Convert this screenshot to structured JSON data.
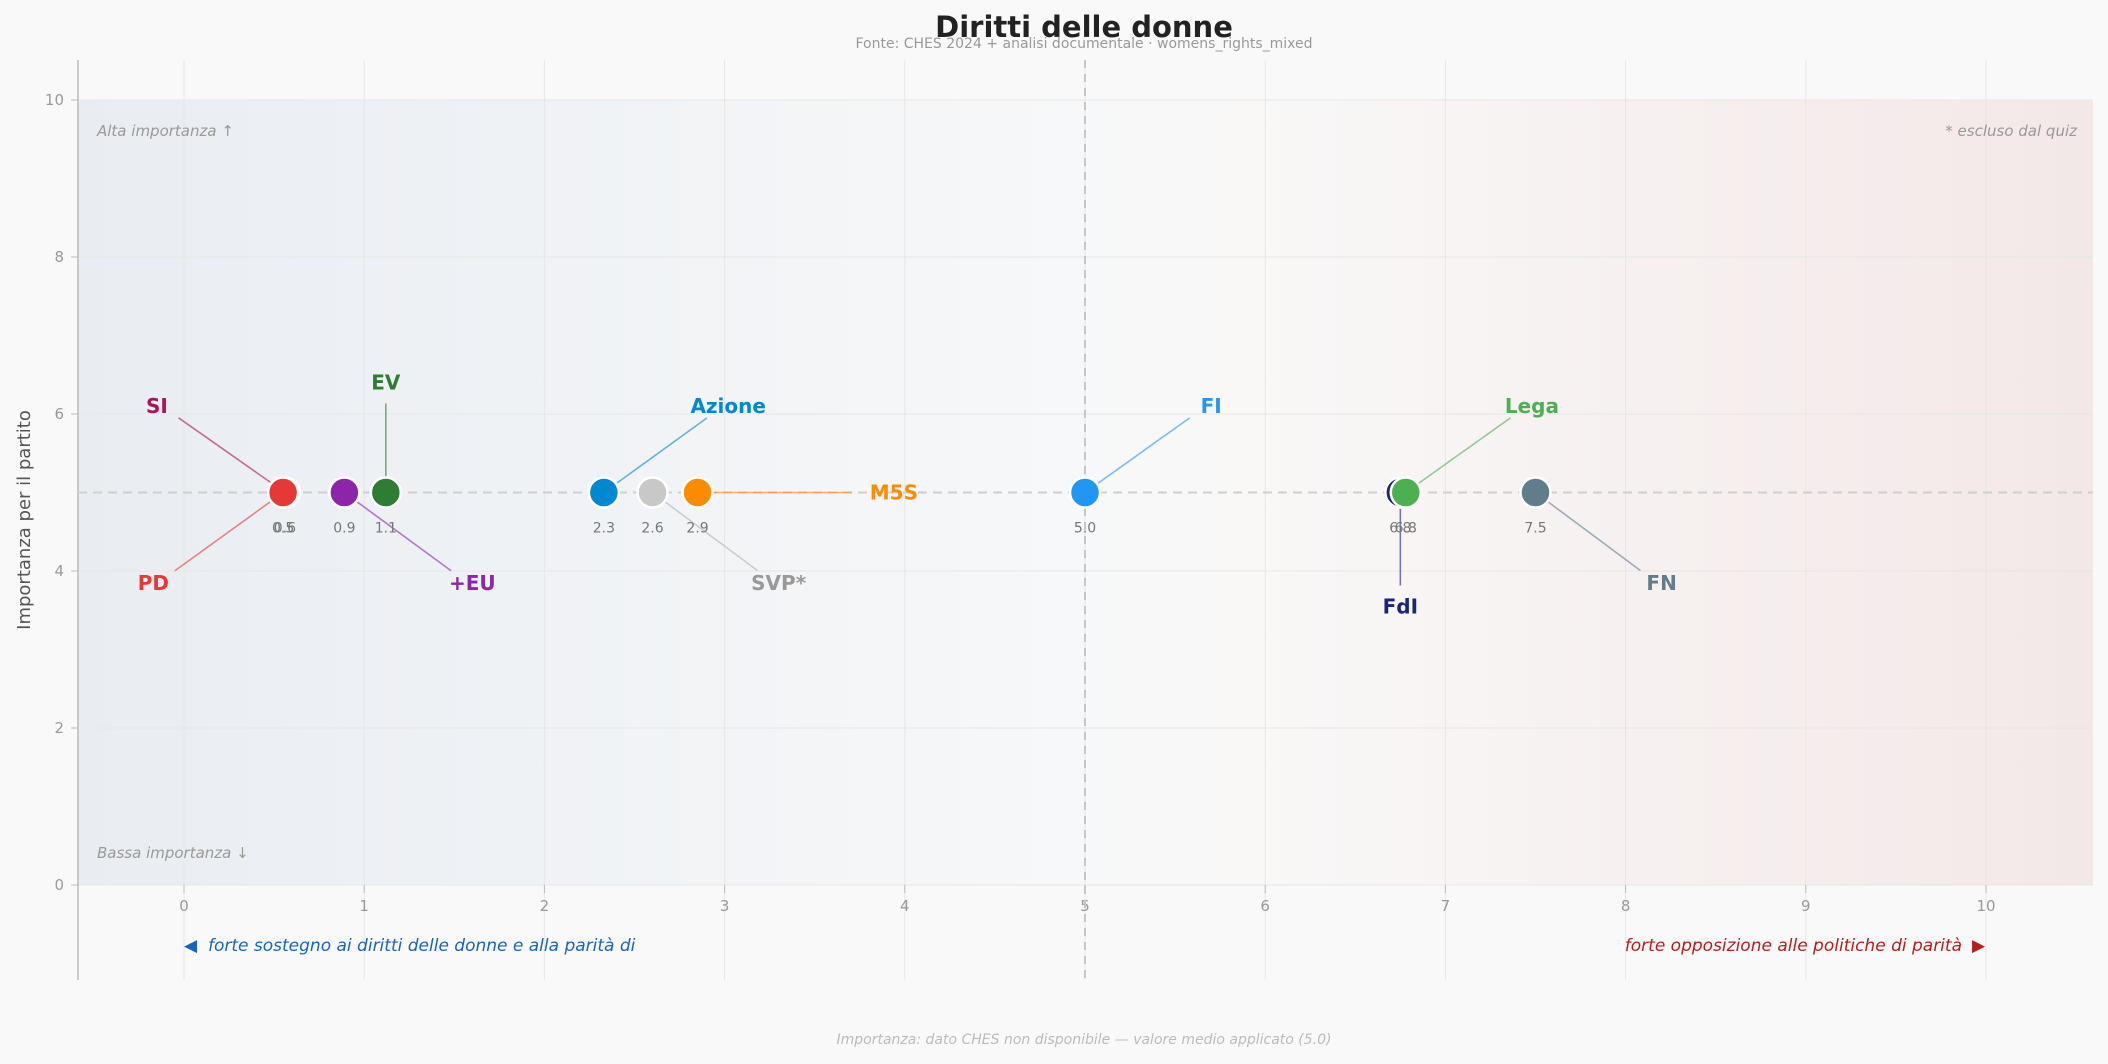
{
  "chart_data": {
    "type": "scatter",
    "title": "Diritti delle donne",
    "subtitle": "Fonte: CHES 2024 + analisi documentale  ·  womens_rights_mixed",
    "ylabel": "Importanza per il partito",
    "xlim": [
      -0.6,
      10.6
    ],
    "ylim": [
      0,
      10.5
    ],
    "x_ticks": [
      "0",
      "1",
      "2",
      "3",
      "4",
      "5",
      "6",
      "7",
      "8",
      "9",
      "10"
    ],
    "y_ticks": [
      "0",
      "2",
      "4",
      "6",
      "8",
      "10"
    ],
    "midline_x": 5,
    "midline_y": 5,
    "grid": true,
    "corner_top_left": "Alta importanza ↑",
    "corner_bottom_left": "Bassa importanza ↓",
    "corner_top_right": "* escluso dal quiz",
    "left_direction": "forte sostegno ai diritti delle donne e alla parità di",
    "right_direction": "forte opposizione alle politiche di parità",
    "left_direction_color": "#1565c0",
    "right_direction_color": "#b71c1c",
    "footnote": "Importanza: dato CHES non disponibile — valore medio applicato (5.0)",
    "points": [
      {
        "label": "SI",
        "x": 0.56,
        "y": 5,
        "value_label": "0.6",
        "color": "#ad1457",
        "label_x": -0.15,
        "label_y": 6.1,
        "faded": false
      },
      {
        "label": "PD",
        "x": 0.55,
        "y": 5,
        "value_label": "0.5",
        "color": "#e53935",
        "label_x": -0.17,
        "label_y": 3.85,
        "faded": false
      },
      {
        "label": "",
        "x": 0.89,
        "y": 5,
        "value_label": "0.9",
        "color": "#8e24aa",
        "label_x": 0.89,
        "label_y": 5,
        "faded": false
      },
      {
        "label": "EV",
        "x": 1.12,
        "y": 5,
        "value_label": "1.1",
        "color": "#2e7d32",
        "label_x": 1.12,
        "label_y": 6.4,
        "faded": false
      },
      {
        "label": "+EU",
        "x": 0.89,
        "y": 5,
        "value_label": "",
        "color": "#8e24aa",
        "label_x": 1.6,
        "label_y": 3.85,
        "faded": false
      },
      {
        "label": "Azione",
        "x": 2.33,
        "y": 5,
        "value_label": "2.3",
        "color": "#0288d1",
        "label_x": 3.02,
        "label_y": 6.1,
        "faded": false
      },
      {
        "label": "SVP*",
        "x": 2.6,
        "y": 5,
        "value_label": "2.6",
        "color": "#c8c8c8",
        "label_x": 3.3,
        "label_y": 3.85,
        "faded": true
      },
      {
        "label": "M5S",
        "x": 2.85,
        "y": 5,
        "value_label": "2.9",
        "color": "#fb8c00",
        "label_x": 3.85,
        "label_y": 5,
        "faded": false
      },
      {
        "label": "FI",
        "x": 5.0,
        "y": 5,
        "value_label": "5.0",
        "color": "#2196f3",
        "label_x": 5.7,
        "label_y": 6.1,
        "faded": false
      },
      {
        "label": "FdI",
        "x": 6.75,
        "y": 5,
        "value_label": "6.8",
        "color": "#1a237e",
        "label_x": 6.75,
        "label_y": 3.55,
        "faded": false
      },
      {
        "label": "Lega",
        "x": 6.78,
        "y": 5,
        "value_label": "6.8",
        "color": "#4caf50",
        "label_x": 7.48,
        "label_y": 6.1,
        "faded": false
      },
      {
        "label": "FN",
        "x": 7.5,
        "y": 5,
        "value_label": "7.5",
        "color": "#607d8b",
        "label_x": 8.2,
        "label_y": 3.85,
        "faded": false
      }
    ]
  }
}
